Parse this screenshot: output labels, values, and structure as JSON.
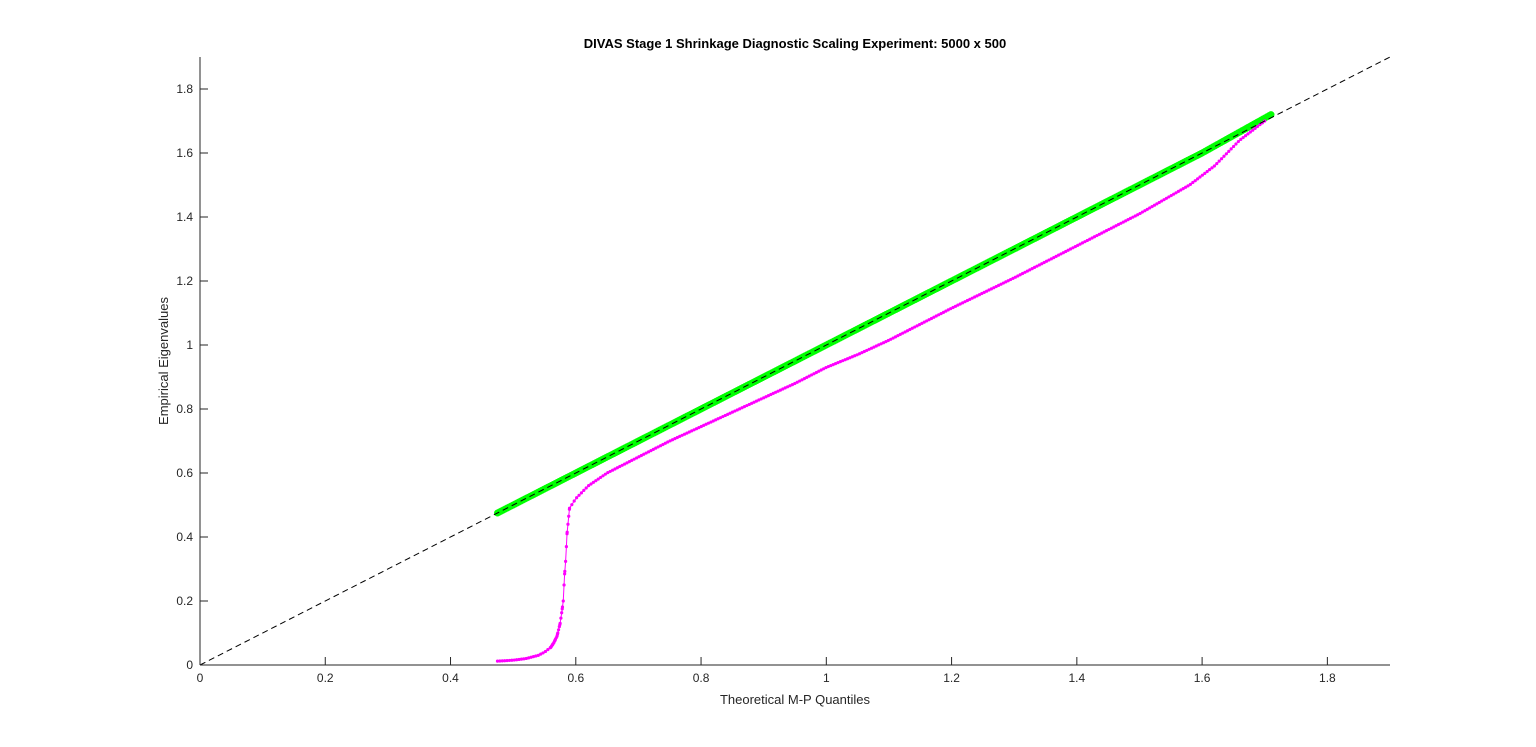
{
  "chart_data": {
    "type": "line",
    "title": "DIVAS Stage 1 Shrinkage Diagnostic Scaling Experiment: 5000 x 500",
    "xlabel": "Theoretical M-P Quantiles",
    "ylabel": "Empirical Eigenvalues",
    "xlim": [
      0,
      1.9
    ],
    "ylim": [
      0,
      1.9
    ],
    "xticks": [
      0,
      0.2,
      0.4,
      0.6,
      0.8,
      1,
      1.2,
      1.4,
      1.6,
      1.8
    ],
    "yticks": [
      0,
      0.2,
      0.4,
      0.6,
      0.8,
      1,
      1.2,
      1.4,
      1.6,
      1.8
    ],
    "xtick_labels": [
      "0",
      "0.2",
      "0.4",
      "0.6",
      "0.8",
      "1",
      "1.2",
      "1.4",
      "1.6",
      "1.8"
    ],
    "ytick_labels": [
      "0",
      "0.2",
      "0.4",
      "0.6",
      "0.8",
      "1",
      "1.2",
      "1.4",
      "1.6",
      "1.8"
    ],
    "grid": false,
    "legend": "none",
    "series": [
      {
        "style": "dashed-line",
        "color": "#000000",
        "x": [
          0,
          1.9
        ],
        "y": [
          0,
          1.9
        ]
      },
      {
        "style": "dense-points-band",
        "color": "#00ff00",
        "x": [
          0.475,
          0.6,
          0.8,
          1.0,
          1.2,
          1.4,
          1.6,
          1.71
        ],
        "y": [
          0.475,
          0.6,
          0.8,
          1.0,
          1.2,
          1.4,
          1.6,
          1.72
        ]
      },
      {
        "style": "line-with-points",
        "color": "#ff00ff",
        "x": [
          0.475,
          0.5,
          0.52,
          0.54,
          0.55,
          0.56,
          0.565,
          0.57,
          0.575,
          0.578,
          0.58,
          0.582,
          0.584,
          0.586,
          0.59,
          0.6,
          0.62,
          0.65,
          0.7,
          0.75,
          0.8,
          0.85,
          0.9,
          0.95,
          1.0,
          1.05,
          1.1,
          1.2,
          1.3,
          1.4,
          1.5,
          1.54,
          1.58,
          1.62,
          1.66,
          1.7
        ],
        "y": [
          0.012,
          0.015,
          0.02,
          0.03,
          0.04,
          0.055,
          0.07,
          0.09,
          0.13,
          0.17,
          0.2,
          0.28,
          0.33,
          0.41,
          0.49,
          0.52,
          0.56,
          0.6,
          0.65,
          0.7,
          0.745,
          0.79,
          0.835,
          0.88,
          0.93,
          0.97,
          1.015,
          1.115,
          1.21,
          1.31,
          1.41,
          1.455,
          1.5,
          1.56,
          1.64,
          1.7
        ]
      }
    ]
  }
}
